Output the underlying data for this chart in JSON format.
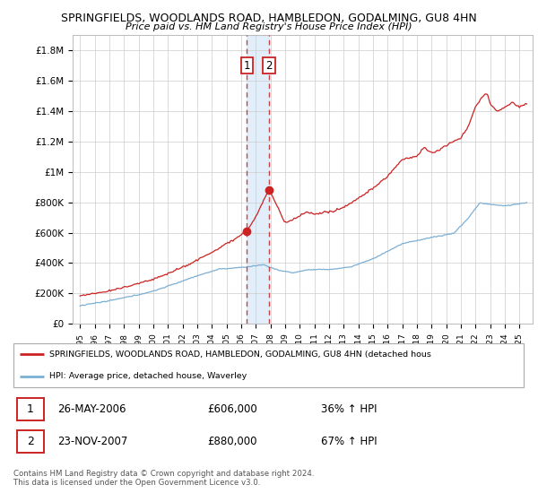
{
  "title1": "SPRINGFIELDS, WOODLANDS ROAD, HAMBLEDON, GODALMING, GU8 4HN",
  "title2": "Price paid vs. HM Land Registry's House Price Index (HPI)",
  "ylabel_ticks": [
    "£0",
    "£200K",
    "£400K",
    "£600K",
    "£800K",
    "£1M",
    "£1.2M",
    "£1.4M",
    "£1.6M",
    "£1.8M"
  ],
  "ytick_values": [
    0,
    200000,
    400000,
    600000,
    800000,
    1000000,
    1200000,
    1400000,
    1600000,
    1800000
  ],
  "ylim": [
    0,
    1900000
  ],
  "year_start": 1995,
  "year_end": 2025,
  "sale1_year": 2006.4,
  "sale1_price": 606000,
  "sale2_year": 2007.9,
  "sale2_price": 880000,
  "hpi_color": "#7bafd4",
  "price_color": "#cc2222",
  "shade_color": "#d0e4f5",
  "legend_line1": "SPRINGFIELDS, WOODLANDS ROAD, HAMBLEDON, GODALMING, GU8 4HN (detached hous",
  "legend_line2": "HPI: Average price, detached house, Waverley",
  "table_row1_num": "1",
  "table_row1_date": "26-MAY-2006",
  "table_row1_price": "£606,000",
  "table_row1_hpi": "36% ↑ HPI",
  "table_row2_num": "2",
  "table_row2_date": "23-NOV-2007",
  "table_row2_price": "£880,000",
  "table_row2_hpi": "67% ↑ HPI",
  "footer": "Contains HM Land Registry data © Crown copyright and database right 2024.\nThis data is licensed under the Open Government Licence v3.0."
}
